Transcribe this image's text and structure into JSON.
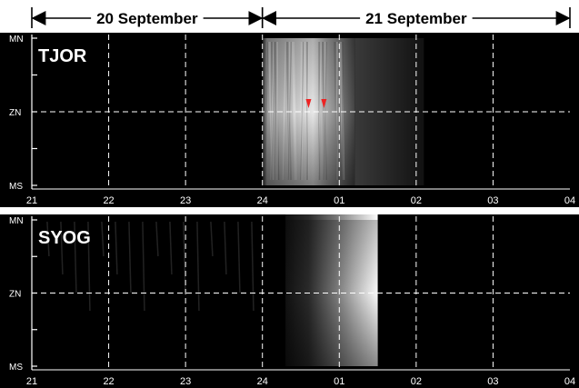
{
  "chart_data": {
    "type": "heatmap",
    "day_spans": [
      {
        "label": "20 September",
        "start_hour": 21,
        "end_hour": 24
      },
      {
        "label": "21 September",
        "start_hour": 24,
        "end_hour": 28
      }
    ],
    "x": {
      "range": [
        21,
        28
      ],
      "tick_labels": [
        "21",
        "22",
        "23",
        "24",
        "01",
        "02",
        "03",
        "04"
      ],
      "grid": "dashed"
    },
    "y": {
      "tick_labels": [
        "MN",
        "ZN",
        "MS"
      ],
      "minor_ticks": 4
    },
    "panels": [
      {
        "station": "TJOR",
        "bright_interval_hours": [
          24.0,
          25.2
        ],
        "fade_interval_hours": [
          25.2,
          26.1
        ],
        "markers": [
          {
            "hour": 24.6,
            "symbol": "red-arrow"
          },
          {
            "hour": 24.8,
            "symbol": "red-arrow"
          }
        ]
      },
      {
        "station": "SYOG",
        "bright_interval_hours": [
          24.3,
          25.5
        ],
        "data_end_hour": 25.5
      }
    ]
  }
}
